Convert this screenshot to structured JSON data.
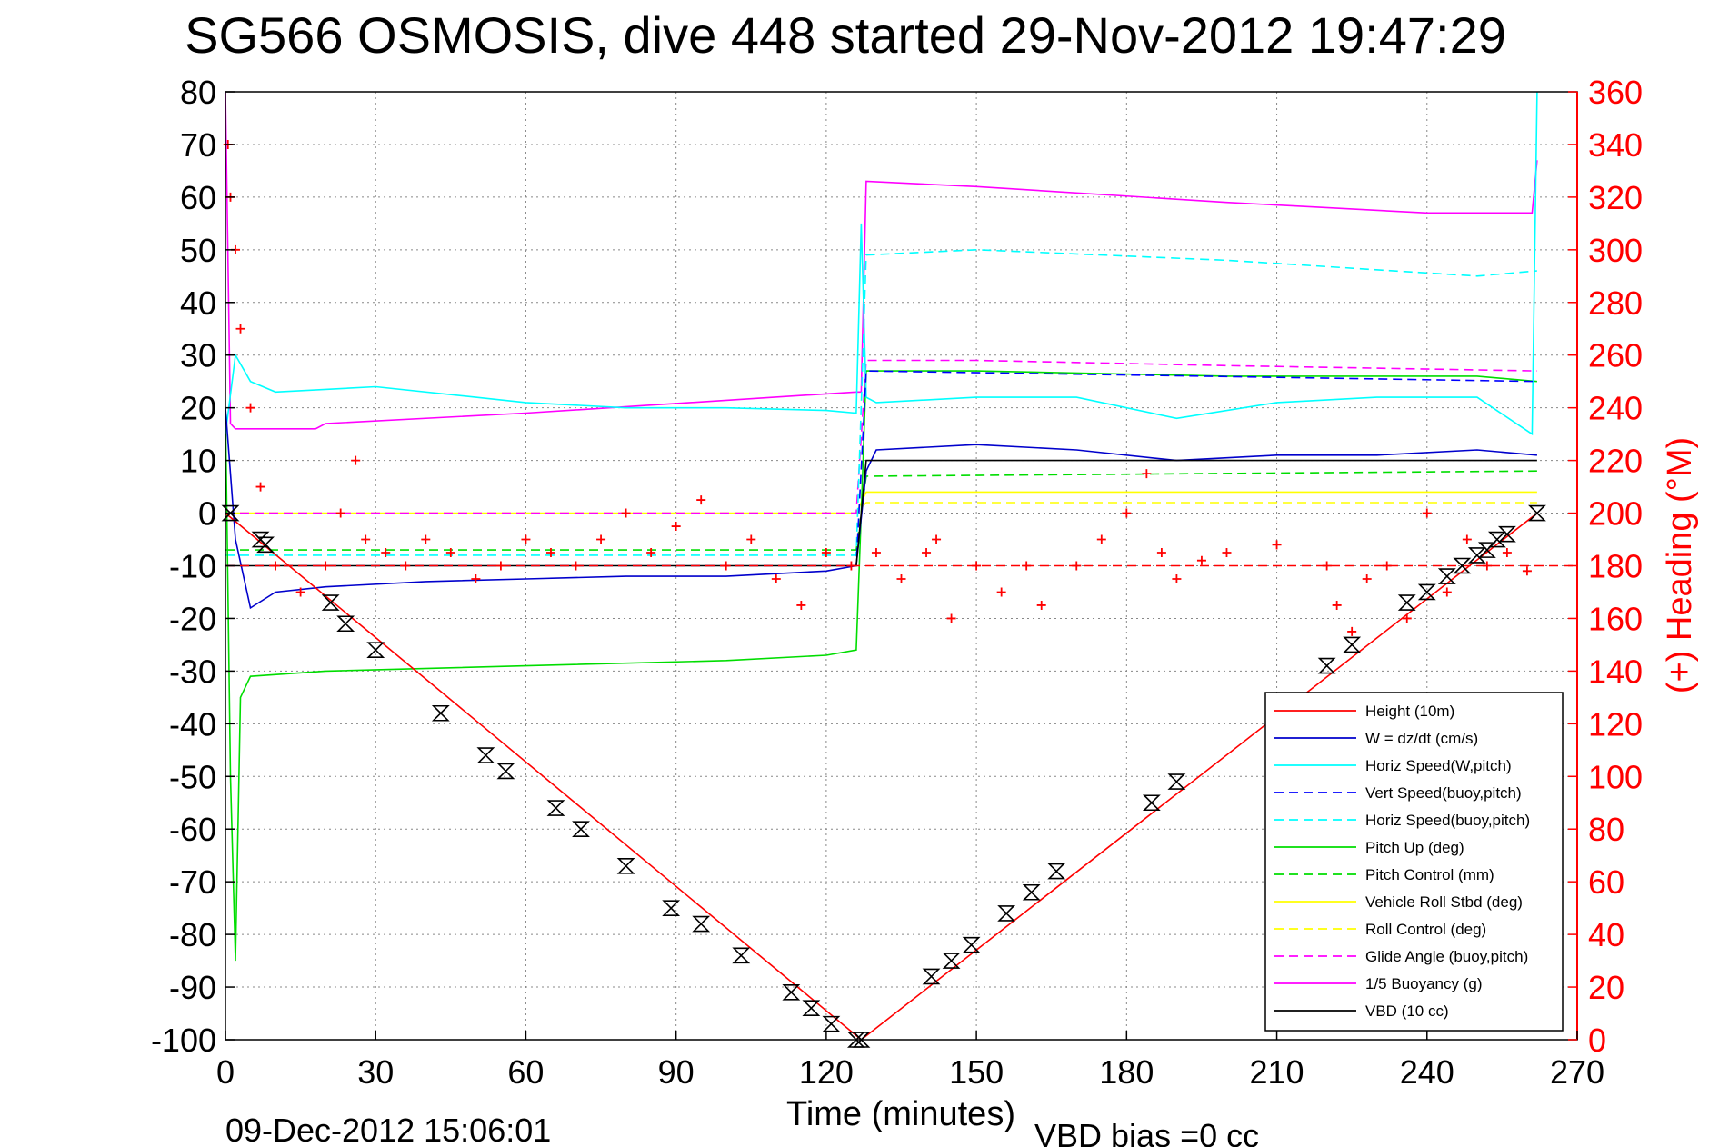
{
  "chart_data": {
    "type": "line",
    "title": "SG566 OSMOSIS, dive 448 started 29-Nov-2012 19:47:29",
    "xlabel": "Time (minutes)",
    "ylabel": "",
    "y2label": "(+) Heading (°M)",
    "xlim": [
      0,
      270
    ],
    "ylim": [
      -100,
      80
    ],
    "y2lim": [
      0,
      360
    ],
    "xticks": [
      0,
      30,
      60,
      90,
      120,
      150,
      180,
      210,
      240,
      270
    ],
    "yticks": [
      80,
      70,
      60,
      50,
      40,
      30,
      20,
      10,
      0,
      -10,
      -20,
      -30,
      -40,
      -50,
      -60,
      -70,
      -80,
      -90,
      -100
    ],
    "y2ticks": [
      360,
      340,
      320,
      300,
      280,
      260,
      240,
      220,
      200,
      180,
      160,
      140,
      120,
      100,
      80,
      60,
      40,
      20,
      0
    ],
    "grid": true,
    "legend_position": "bottom-right",
    "footer_left": "09-Dec-2012 15:06:01",
    "footer_right": "VBD bias =0 cc",
    "series": [
      {
        "name": "Height (10m)",
        "color": "#ff0000",
        "style": "solid",
        "x": [
          0,
          127,
          262
        ],
        "y": [
          0,
          -100,
          0
        ]
      },
      {
        "name": "W = dz/dt (cm/s)",
        "color": "#0000cc",
        "style": "solid",
        "x": [
          0,
          2,
          5,
          10,
          20,
          40,
          60,
          80,
          100,
          120,
          126,
          128,
          130,
          150,
          170,
          190,
          210,
          230,
          250,
          262
        ],
        "y": [
          20,
          -5,
          -18,
          -15,
          -14,
          -13,
          -12.5,
          -12,
          -12,
          -11,
          -10,
          8,
          12,
          13,
          12,
          10,
          11,
          11,
          12,
          11
        ]
      },
      {
        "name": "Horiz Speed(W,pitch)",
        "color": "#00ffff",
        "style": "solid",
        "x": [
          0,
          2,
          5,
          10,
          30,
          50,
          60,
          80,
          100,
          120,
          126,
          127,
          128,
          130,
          150,
          170,
          190,
          210,
          230,
          250,
          261,
          262
        ],
        "y": [
          15,
          30,
          25,
          23,
          24,
          22,
          21,
          20,
          20,
          19.5,
          19,
          55,
          22,
          21,
          22,
          22,
          18,
          21,
          22,
          22,
          15,
          80
        ]
      },
      {
        "name": "Vert Speed(buoy,pitch)",
        "color": "#0000ff",
        "style": "dashed",
        "x": [
          0,
          126,
          128,
          262
        ],
        "y": [
          -10,
          -10,
          27,
          25
        ]
      },
      {
        "name": "Horiz Speed(buoy,pitch)",
        "color": "#00ffff",
        "style": "dashed",
        "x": [
          0,
          126,
          128,
          150,
          200,
          250,
          262
        ],
        "y": [
          -8,
          -8,
          49,
          50,
          48,
          45,
          46
        ]
      },
      {
        "name": "Pitch Up (deg)",
        "color": "#00dd00",
        "style": "solid",
        "x": [
          0,
          1,
          2,
          3,
          5,
          20,
          60,
          100,
          120,
          126,
          127,
          128,
          150,
          200,
          250,
          262
        ],
        "y": [
          20,
          -50,
          -85,
          -35,
          -31,
          -30,
          -29,
          -28,
          -27,
          -26,
          0,
          27,
          27,
          26,
          26,
          25
        ]
      },
      {
        "name": "Pitch Control (mm)",
        "color": "#00dd00",
        "style": "dashed",
        "x": [
          0,
          126,
          128,
          262
        ],
        "y": [
          -7,
          -7,
          7,
          8
        ]
      },
      {
        "name": "Vehicle Roll Stbd (deg)",
        "color": "#ffff00",
        "style": "solid",
        "x": [
          0,
          126,
          128,
          262
        ],
        "y": [
          0,
          0,
          4,
          4
        ]
      },
      {
        "name": "Roll Control (deg)",
        "color": "#ffff00",
        "style": "dashed",
        "x": [
          0,
          126,
          128,
          262
        ],
        "y": [
          0,
          0,
          2,
          2
        ]
      },
      {
        "name": "Glide Angle (buoy,pitch)",
        "color": "#ff00ff",
        "style": "dashed",
        "x": [
          0,
          126,
          128,
          150,
          200,
          262
        ],
        "y": [
          0,
          0,
          29,
          29,
          28,
          27
        ]
      },
      {
        "name": "1/5 Buoyancy (g)",
        "color": "#ff00ff",
        "style": "solid",
        "x": [
          0,
          1,
          2,
          18,
          20,
          60,
          126,
          127,
          128,
          150,
          200,
          240,
          261,
          262
        ],
        "y": [
          80,
          17,
          16,
          16,
          17,
          19,
          23,
          23,
          63,
          62,
          59,
          57,
          57,
          67
        ]
      },
      {
        "name": "VBD (10 cc)",
        "color": "#000000",
        "style": "solid",
        "x": [
          0,
          126,
          127,
          128,
          262
        ],
        "y": [
          -10,
          -10,
          0,
          10,
          10
        ]
      }
    ],
    "heading": {
      "name": "(+) Heading (°M)",
      "marker": "+",
      "color": "#ff0000",
      "mean": 180,
      "x": [
        0.5,
        1,
        2,
        3,
        5,
        7,
        10,
        15,
        20,
        23,
        26,
        28,
        32,
        36,
        40,
        45,
        50,
        55,
        60,
        65,
        70,
        75,
        80,
        85,
        90,
        95,
        100,
        105,
        110,
        115,
        120,
        125,
        130,
        135,
        140,
        142,
        145,
        150,
        155,
        160,
        163,
        170,
        175,
        180,
        184,
        187,
        190,
        195,
        200,
        210,
        220,
        222,
        225,
        228,
        232,
        236,
        240,
        244,
        248,
        252,
        256,
        260
      ],
      "y": [
        340,
        320,
        300,
        270,
        240,
        210,
        180,
        170,
        180,
        200,
        220,
        190,
        185,
        180,
        190,
        185,
        175,
        180,
        190,
        185,
        180,
        190,
        200,
        185,
        195,
        205,
        180,
        190,
        175,
        165,
        185,
        180,
        185,
        175,
        185,
        190,
        160,
        180,
        170,
        180,
        165,
        180,
        190,
        200,
        215,
        185,
        175,
        182,
        185,
        188,
        180,
        165,
        155,
        175,
        180,
        160,
        200,
        170,
        190,
        180,
        185,
        178
      ]
    },
    "markers": {
      "symbol": "hourglass",
      "color": "#000000",
      "x": [
        1,
        7,
        8,
        21,
        24,
        30,
        43,
        52,
        56,
        66,
        71,
        80,
        89,
        95,
        103,
        113,
        117,
        121,
        126,
        127,
        141,
        145,
        149,
        156,
        161,
        166,
        185,
        190,
        220,
        225,
        236,
        240,
        244,
        247,
        250,
        252,
        254,
        256,
        262
      ],
      "y": [
        0,
        -5,
        -6,
        -17,
        -21,
        -26,
        -38,
        -46,
        -49,
        -56,
        -60,
        -67,
        -75,
        -78,
        -84,
        -91,
        -94,
        -97,
        -100,
        -100,
        -88,
        -85,
        -82,
        -76,
        -72,
        -68,
        -55,
        -51,
        -29,
        -25,
        -17,
        -15,
        -12,
        -10,
        -8,
        -7,
        -5,
        -4,
        0
      ]
    }
  }
}
